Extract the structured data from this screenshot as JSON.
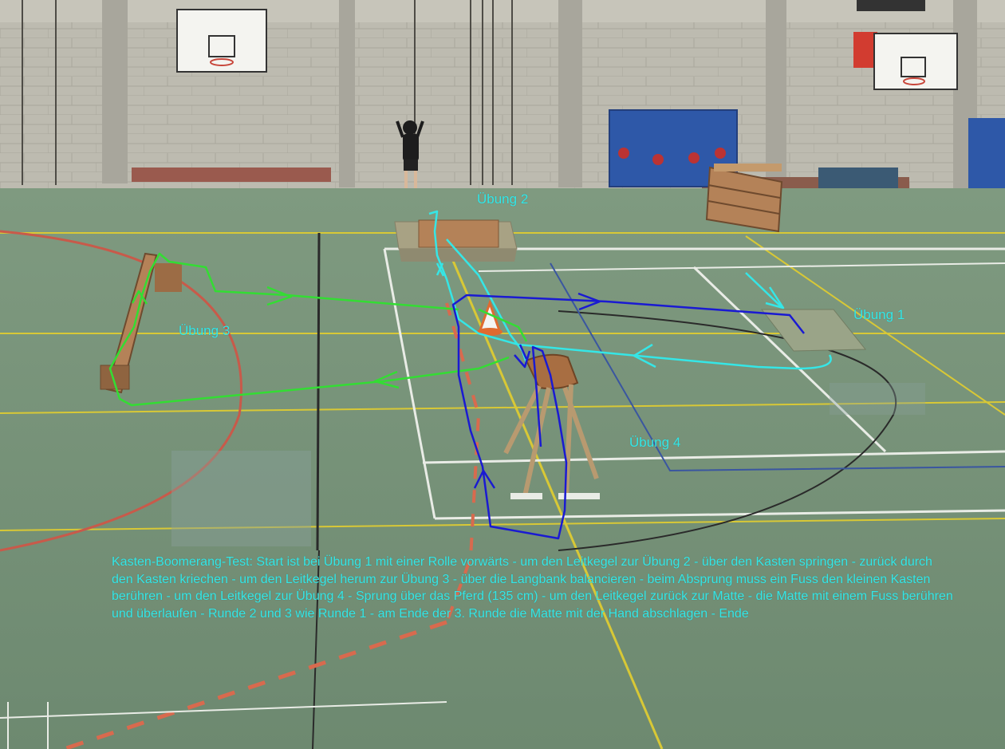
{
  "labels": {
    "station_1": "Übung 1",
    "station_2": "Übung 2",
    "station_3": "Übung 3",
    "station_4": "Übung 4"
  },
  "description": "Kasten-Boomerang-Test: Start ist bei Übung 1 mit einer Rolle vorwärts - um den Leitkegel zur Übung 2 - über den Kasten springen - zurück durch den Kasten kriechen - um den Leitkegel herum zur Übung 3 - über die Langbank balancieren - beim Absprung muss ein Fuss den kleinen Kasten berühren - um den Leitkegel zur Übung 4 - Sprung über das Pferd (135 cm) - um den Leitkegel zurück zur Matte - die Matte mit einem Fuss berühren und überlaufen - Runde 2 und 3 wie Runde 1 - am Ende der 3. Runde die Matte mit der Hand abschlagen - Ende",
  "colors": {
    "floor": "#6f8a72",
    "wall": "#b9b7ac",
    "route_cyan": "#35e6e6",
    "route_green": "#33dd33",
    "route_blue": "#1a1ad2",
    "court_white": "#e9ece6",
    "court_yellow": "#d8c836",
    "court_red": "#c85a4a"
  }
}
